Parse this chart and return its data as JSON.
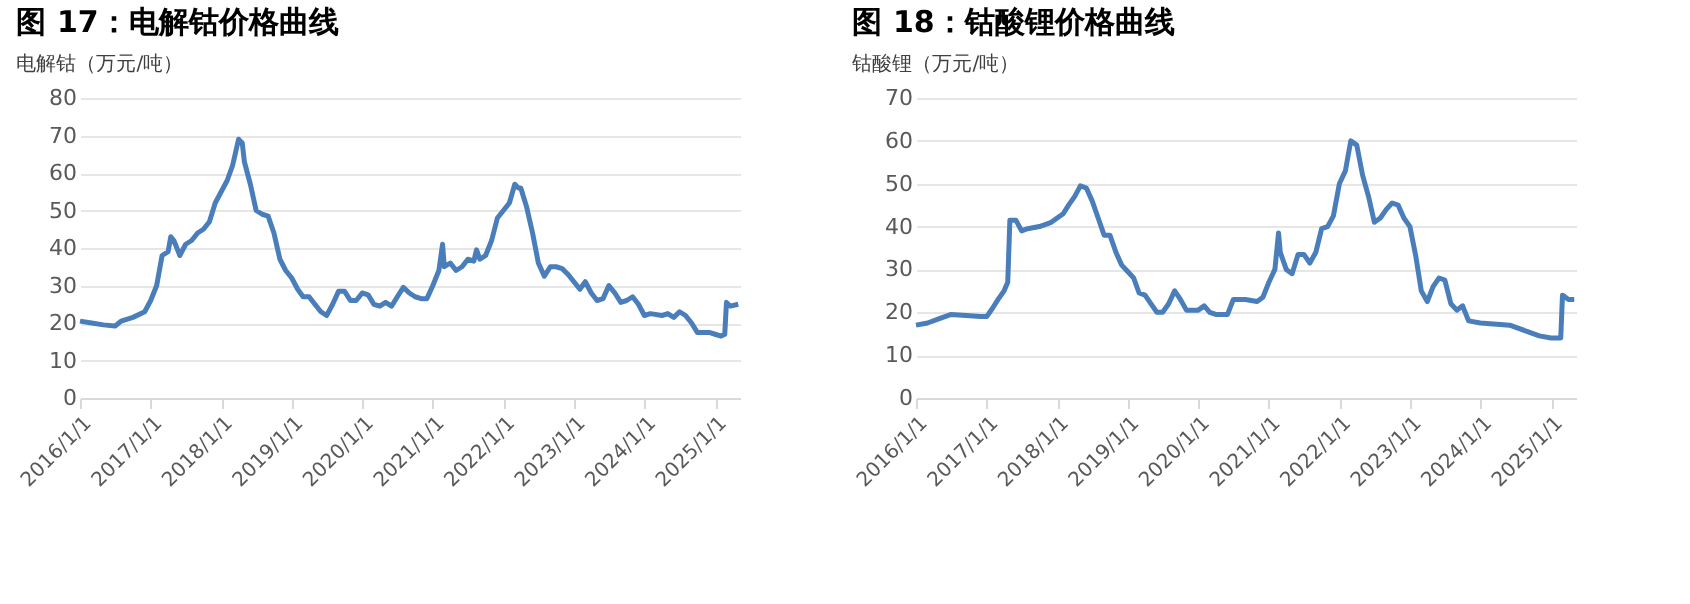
{
  "chart_data": [
    {
      "type": "line",
      "title": "图 17：电解钴价格曲线",
      "subtitle": "电解钴（万元/吨）",
      "grid": "y",
      "line_style": "solid",
      "marker": "none",
      "xlim": [
        "2016-01-01",
        "2025-05-10"
      ],
      "xticks": [
        {
          "value": "2016-01-01",
          "label": "2016/1/1"
        },
        {
          "value": "2017-01-01",
          "label": "2017/1/1"
        },
        {
          "value": "2018-01-01",
          "label": "2018/1/1"
        },
        {
          "value": "2019-01-01",
          "label": "2019/1/1"
        },
        {
          "value": "2020-01-01",
          "label": "2020/1/1"
        },
        {
          "value": "2021-01-01",
          "label": "2021/1/1"
        },
        {
          "value": "2022-01-01",
          "label": "2022/1/1"
        },
        {
          "value": "2023-01-01",
          "label": "2023/1/1"
        },
        {
          "value": "2024-01-01",
          "label": "2024/1/1"
        },
        {
          "value": "2025-01-01",
          "label": "2025/1/1"
        }
      ],
      "ylim": [
        0,
        80
      ],
      "yticks": [
        0,
        10,
        20,
        30,
        40,
        50,
        60,
        70,
        80
      ],
      "x": [
        "2016-01-01",
        "2016-03-01",
        "2016-05-01",
        "2016-07-01",
        "2016-08-01",
        "2016-10-01",
        "2016-12-01",
        "2017-01-01",
        "2017-02-01",
        "2017-03-01",
        "2017-04-01",
        "2017-04-15",
        "2017-05-01",
        "2017-06-01",
        "2017-07-01",
        "2017-08-01",
        "2017-09-01",
        "2017-10-01",
        "2017-11-01",
        "2017-12-01",
        "2018-01-01",
        "2018-02-01",
        "2018-03-01",
        "2018-04-01",
        "2018-04-20",
        "2018-05-01",
        "2018-06-01",
        "2018-07-01",
        "2018-08-01",
        "2018-09-01",
        "2018-10-01",
        "2018-11-01",
        "2018-12-01",
        "2019-01-01",
        "2019-02-01",
        "2019-03-01",
        "2019-04-01",
        "2019-05-01",
        "2019-06-01",
        "2019-07-01",
        "2019-08-01",
        "2019-09-01",
        "2019-10-01",
        "2019-11-01",
        "2019-12-01",
        "2020-01-01",
        "2020-02-01",
        "2020-03-01",
        "2020-04-01",
        "2020-05-01",
        "2020-06-01",
        "2020-07-01",
        "2020-08-01",
        "2020-09-01",
        "2020-10-01",
        "2020-11-01",
        "2020-12-01",
        "2021-01-01",
        "2021-02-01",
        "2021-02-20",
        "2021-03-01",
        "2021-04-01",
        "2021-05-01",
        "2021-06-01",
        "2021-07-01",
        "2021-08-01",
        "2021-08-15",
        "2021-09-01",
        "2021-10-01",
        "2021-11-01",
        "2021-12-01",
        "2022-01-01",
        "2022-02-01",
        "2022-03-01",
        "2022-03-20",
        "2022-04-01",
        "2022-05-01",
        "2022-06-01",
        "2022-07-01",
        "2022-08-01",
        "2022-09-01",
        "2022-10-01",
        "2022-11-01",
        "2022-12-01",
        "2023-01-01",
        "2023-02-01",
        "2023-03-01",
        "2023-04-01",
        "2023-05-01",
        "2023-06-01",
        "2023-07-01",
        "2023-08-01",
        "2023-09-01",
        "2023-10-01",
        "2023-11-01",
        "2023-12-01",
        "2024-01-01",
        "2024-02-01",
        "2024-04-01",
        "2024-05-01",
        "2024-06-01",
        "2024-07-01",
        "2024-08-01",
        "2024-09-01",
        "2024-10-01",
        "2024-12-01",
        "2025-01-01",
        "2025-02-01",
        "2025-02-20",
        "2025-03-01",
        "2025-03-20",
        "2025-05-01"
      ],
      "series": [
        {
          "color": "#4a7ebb",
          "values": [
            20.5,
            20,
            19.5,
            19.2,
            20.5,
            21.5,
            23,
            26,
            30,
            38,
            39,
            43,
            42,
            38,
            41,
            42,
            44,
            45,
            47,
            52,
            55,
            58,
            62,
            69,
            68,
            63,
            57,
            50,
            49,
            48.5,
            44,
            37,
            34,
            32,
            29,
            27,
            27,
            25,
            23,
            22,
            25,
            28.5,
            28.5,
            26,
            26,
            28,
            27.5,
            25,
            24.5,
            25.5,
            24.5,
            27,
            29.5,
            28,
            27,
            26.5,
            26.5,
            30,
            34,
            41,
            35,
            36,
            34,
            35,
            37,
            36.5,
            39.5,
            37,
            38,
            42,
            48,
            50,
            52,
            57,
            56,
            56,
            51,
            44,
            36,
            32.5,
            35,
            35,
            34.5,
            33,
            31,
            29,
            31,
            28,
            26,
            26.5,
            30,
            28,
            25.5,
            26,
            27,
            25,
            22,
            22.5,
            22,
            22.5,
            21.5,
            23,
            22,
            20,
            17.5,
            17.5,
            17,
            16.5,
            17,
            25.5,
            24.5,
            25
          ]
        }
      ]
    },
    {
      "type": "line",
      "title": "图 18：钴酸锂价格曲线",
      "subtitle": "钴酸锂（万元/吨）",
      "grid": "y",
      "line_style": "solid",
      "marker": "none",
      "xlim": [
        "2016-01-01",
        "2025-05-10"
      ],
      "xticks": [
        {
          "value": "2016-01-01",
          "label": "2016/1/1"
        },
        {
          "value": "2017-01-01",
          "label": "2017/1/1"
        },
        {
          "value": "2018-01-01",
          "label": "2018/1/1"
        },
        {
          "value": "2019-01-01",
          "label": "2019/1/1"
        },
        {
          "value": "2020-01-01",
          "label": "2020/1/1"
        },
        {
          "value": "2021-01-01",
          "label": "2021/1/1"
        },
        {
          "value": "2022-01-01",
          "label": "2022/1/1"
        },
        {
          "value": "2023-01-01",
          "label": "2023/1/1"
        },
        {
          "value": "2024-01-01",
          "label": "2024/1/1"
        },
        {
          "value": "2025-01-01",
          "label": "2025/1/1"
        }
      ],
      "ylim": [
        0,
        70
      ],
      "yticks": [
        0,
        10,
        20,
        30,
        40,
        50,
        60,
        70
      ],
      "x": [
        "2016-01-01",
        "2016-03-01",
        "2016-05-01",
        "2016-07-01",
        "2016-12-01",
        "2017-01-01",
        "2017-02-01",
        "2017-03-01",
        "2017-04-01",
        "2017-04-20",
        "2017-05-01",
        "2017-06-01",
        "2017-07-01",
        "2017-08-01",
        "2017-10-01",
        "2017-12-01",
        "2018-01-01",
        "2018-02-01",
        "2018-03-01",
        "2018-04-01",
        "2018-05-01",
        "2018-06-01",
        "2018-07-01",
        "2018-08-01",
        "2018-09-01",
        "2018-10-01",
        "2018-11-01",
        "2018-12-01",
        "2019-01-01",
        "2019-02-01",
        "2019-03-01",
        "2019-04-01",
        "2019-05-01",
        "2019-06-01",
        "2019-07-01",
        "2019-08-01",
        "2019-09-01",
        "2019-10-01",
        "2019-11-01",
        "2020-01-01",
        "2020-02-01",
        "2020-03-01",
        "2020-04-01",
        "2020-06-01",
        "2020-07-01",
        "2020-09-01",
        "2020-11-01",
        "2020-12-01",
        "2021-01-01",
        "2021-02-01",
        "2021-02-20",
        "2021-03-01",
        "2021-04-01",
        "2021-05-01",
        "2021-06-01",
        "2021-07-01",
        "2021-08-01",
        "2021-09-01",
        "2021-10-01",
        "2021-11-01",
        "2021-12-01",
        "2022-01-01",
        "2022-02-01",
        "2022-03-01",
        "2022-04-01",
        "2022-05-01",
        "2022-06-01",
        "2022-07-01",
        "2022-08-01",
        "2022-09-01",
        "2022-10-01",
        "2022-11-01",
        "2022-12-01",
        "2023-01-01",
        "2023-02-01",
        "2023-03-01",
        "2023-04-01",
        "2023-05-01",
        "2023-06-01",
        "2023-07-01",
        "2023-08-01",
        "2023-09-01",
        "2023-10-01",
        "2023-11-01",
        "2024-01-01",
        "2024-06-01",
        "2024-09-01",
        "2024-11-01",
        "2025-01-01",
        "2025-02-01",
        "2025-02-20",
        "2025-03-01",
        "2025-04-01",
        "2025-05-01"
      ],
      "series": [
        {
          "color": "#4a7ebb",
          "values": [
            17,
            17.5,
            18.5,
            19.5,
            19,
            19,
            21,
            23,
            25,
            27,
            41.5,
            41.5,
            39,
            39.5,
            40,
            41,
            42,
            43,
            45,
            47,
            49.5,
            49,
            46,
            42,
            38,
            38,
            34,
            31,
            29.5,
            28,
            24.5,
            24,
            22,
            20,
            20,
            22,
            25,
            23,
            20.5,
            20.5,
            21.5,
            20,
            19.5,
            19.5,
            23,
            23,
            22.5,
            23.5,
            27,
            30,
            38.5,
            34,
            30,
            29,
            33.5,
            33.5,
            31.5,
            34,
            39.5,
            40,
            42.5,
            50,
            53,
            60,
            59,
            52,
            47,
            41,
            42,
            44,
            45.5,
            45,
            42,
            40,
            33,
            25,
            22.5,
            26,
            28,
            27.5,
            22,
            20.5,
            21.5,
            18,
            17.5,
            17,
            15.5,
            14.5,
            14,
            14,
            14,
            24,
            23,
            23
          ]
        }
      ]
    }
  ]
}
